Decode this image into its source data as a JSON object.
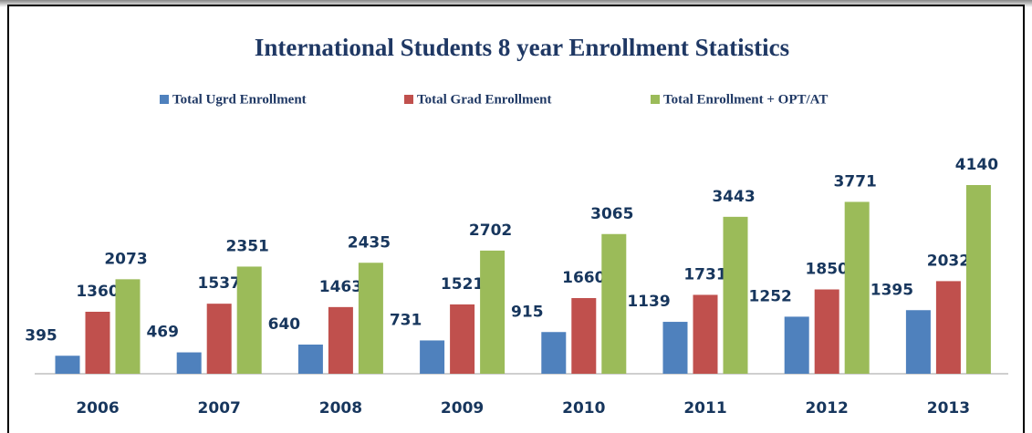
{
  "chart_data": {
    "type": "bar",
    "title": "International Students 8 year Enrollment Statistics",
    "categories": [
      "2006",
      "2007",
      "2008",
      "2009",
      "2010",
      "2011",
      "2012",
      "2013"
    ],
    "series": [
      {
        "name": "Total Ugrd Enrollment",
        "color": "#4f81bd",
        "values": [
          395,
          469,
          640,
          731,
          915,
          1139,
          1252,
          1395
        ]
      },
      {
        "name": "Total Grad Enrollment",
        "color": "#c0504d",
        "values": [
          1360,
          1537,
          1463,
          1521,
          1660,
          1731,
          1850,
          2032
        ]
      },
      {
        "name": "Total Enrollment + OPT/AT",
        "color": "#9bbb59",
        "values": [
          2073,
          2351,
          2435,
          2702,
          3065,
          3443,
          3771,
          4140
        ]
      }
    ],
    "legend": "top"
  }
}
